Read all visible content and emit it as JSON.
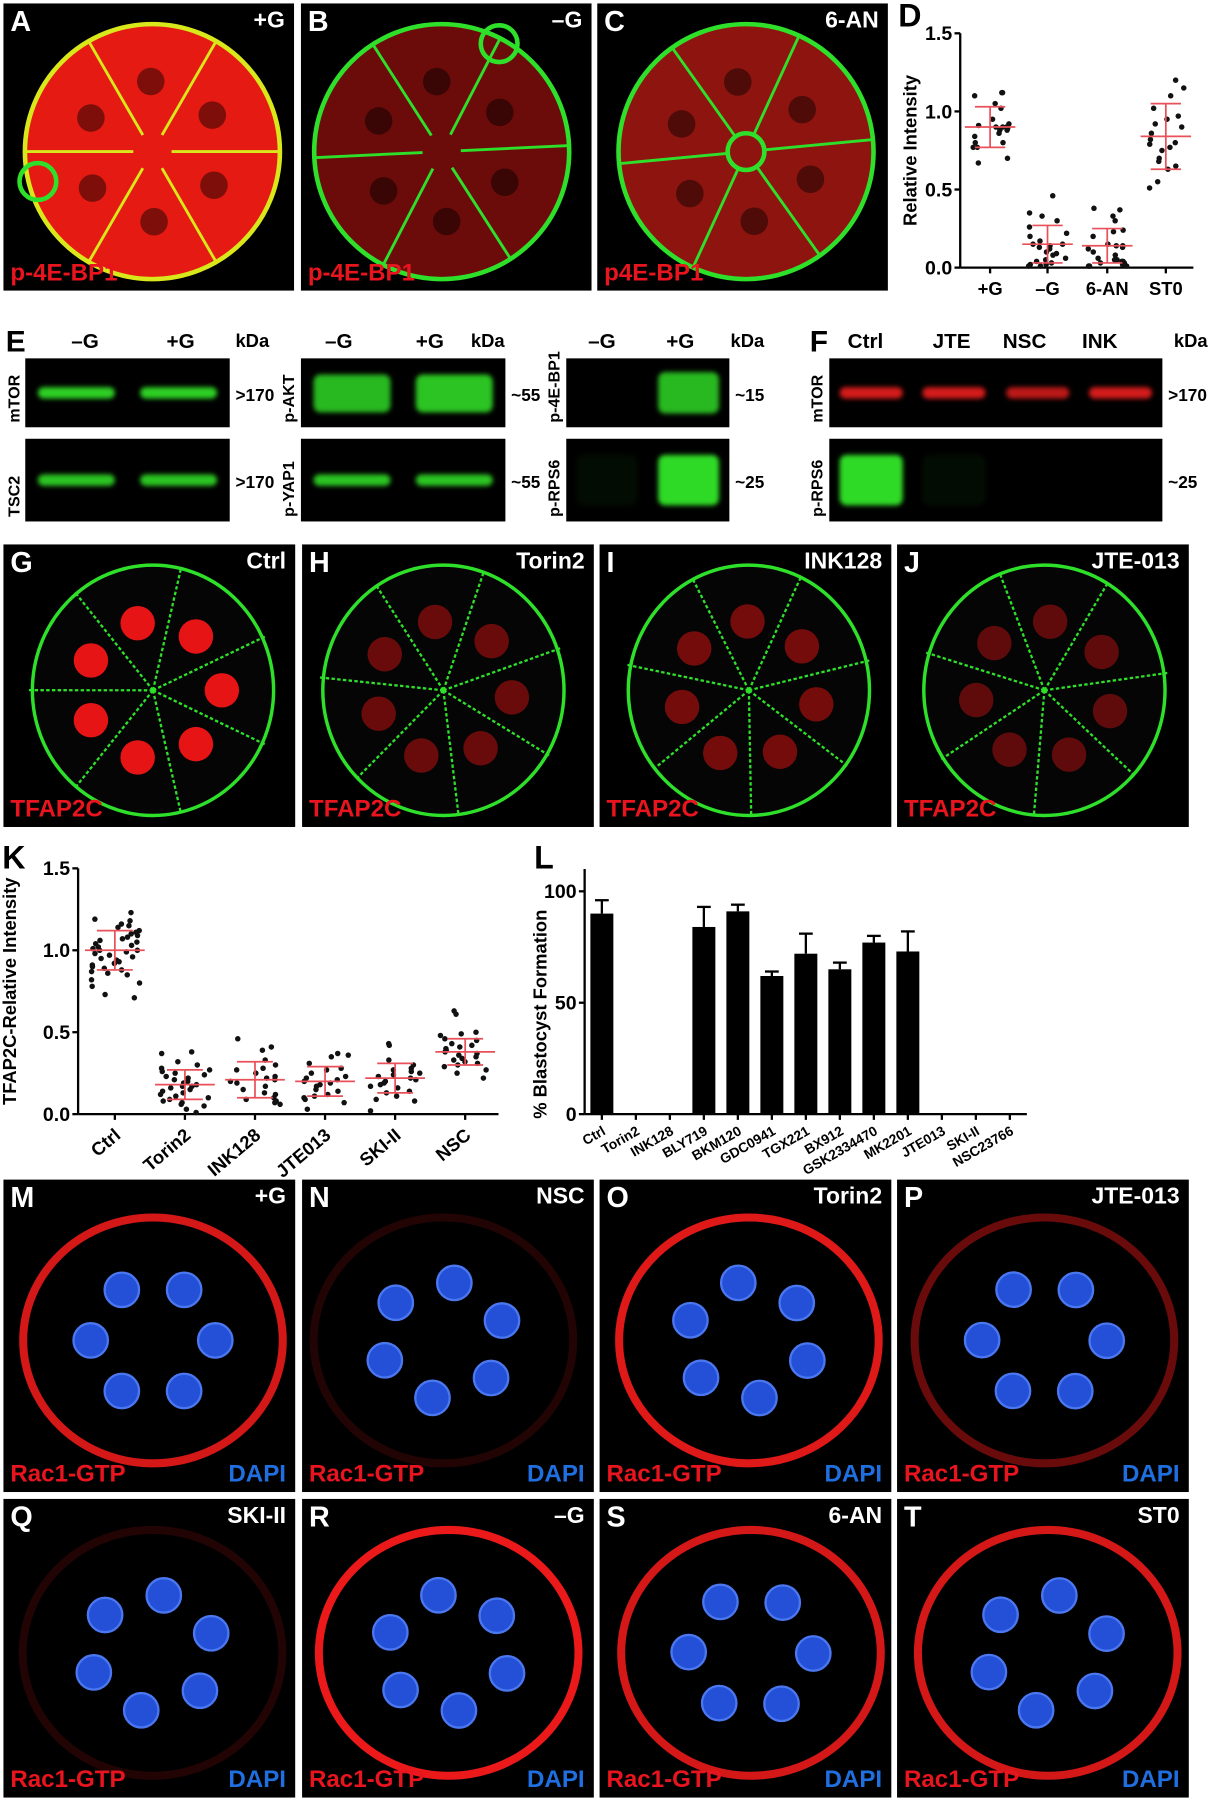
{
  "colors": {
    "red": "#e8141e",
    "green": "#2ee02a",
    "blue": "#1f6fe0",
    "yellow": "#d8e81a",
    "black": "#000000",
    "error_red": "#e8505a"
  },
  "row1": [
    {
      "letter": "A",
      "condition": "+G",
      "stain": "p-4E-BP1"
    },
    {
      "letter": "B",
      "condition": "–G",
      "stain": "p-4E-BP1"
    },
    {
      "letter": "C",
      "condition": "6-AN",
      "stain": "p4E-BP1"
    }
  ],
  "row3": [
    {
      "letter": "G",
      "condition": "Ctrl",
      "stain": "TFAP2C"
    },
    {
      "letter": "H",
      "condition": "Torin2",
      "stain": "TFAP2C"
    },
    {
      "letter": "I",
      "condition": "INK128",
      "stain": "TFAP2C"
    },
    {
      "letter": "J",
      "condition": "JTE-013",
      "stain": "TFAP2C"
    }
  ],
  "row5": [
    {
      "letter": "M",
      "condition": "+G",
      "stain": "Rac1-GTP",
      "stain2": "DAPI",
      "ring": 0.9
    },
    {
      "letter": "N",
      "condition": "NSC",
      "stain": "Rac1-GTP",
      "stain2": "DAPI",
      "ring": 0.15
    },
    {
      "letter": "O",
      "condition": "Torin2",
      "stain": "Rac1-GTP",
      "stain2": "DAPI",
      "ring": 0.95
    },
    {
      "letter": "P",
      "condition": "JTE-013",
      "stain": "Rac1-GTP",
      "stain2": "DAPI",
      "ring": 0.45
    }
  ],
  "row6": [
    {
      "letter": "Q",
      "condition": "SKI-II",
      "stain": "Rac1-GTP",
      "stain2": "DAPI",
      "ring": 0.15
    },
    {
      "letter": "R",
      "condition": "–G",
      "stain": "Rac1-GTP",
      "stain2": "DAPI",
      "ring": 1.0
    },
    {
      "letter": "S",
      "condition": "6-AN",
      "stain": "Rac1-GTP",
      "stain2": "DAPI",
      "ring": 0.9
    },
    {
      "letter": "T",
      "condition": "ST0",
      "stain": "Rac1-GTP",
      "stain2": "DAPI",
      "ring": 0.9
    }
  ],
  "blots": {
    "E": {
      "letter": "E",
      "sets": [
        {
          "lanes": [
            "–G",
            "+G"
          ],
          "kda_label": "kDa",
          "rows": [
            {
              "label": "mTOR",
              "kda": ">170",
              "color": "green",
              "intensity": [
                0.9,
                0.9
              ]
            },
            {
              "label": "TSC2",
              "kda": ">170",
              "color": "green",
              "intensity": [
                0.85,
                0.85
              ]
            }
          ]
        },
        {
          "lanes": [
            "–G",
            "+G"
          ],
          "kda_label": "kDa",
          "rows": [
            {
              "label": "p-AKT",
              "kda": "~55",
              "color": "green",
              "intensity": [
                0.8,
                0.85
              ]
            },
            {
              "label": "p-YAP1",
              "kda": "~55",
              "color": "green",
              "intensity": [
                0.85,
                0.85
              ]
            }
          ]
        },
        {
          "lanes": [
            "–G",
            "+G"
          ],
          "kda_label": "kDa",
          "rows": [
            {
              "label": "p-4E-BP1",
              "kda": "~15",
              "color": "green",
              "intensity": [
                0.0,
                0.8
              ]
            },
            {
              "label": "p-RPS6",
              "kda": "~25",
              "color": "green",
              "intensity": [
                0.05,
                0.95
              ]
            }
          ]
        }
      ]
    },
    "F": {
      "letter": "F",
      "lanes": [
        "Ctrl",
        "JTE",
        "NSC",
        "INK"
      ],
      "kda_label": "kDa",
      "rows": [
        {
          "label": "mTOR",
          "kda": ">170",
          "color": "red",
          "intensity": [
            0.9,
            0.9,
            0.8,
            0.9
          ]
        },
        {
          "label": "p-RPS6",
          "kda": "~25",
          "color": "green",
          "intensity": [
            0.95,
            0.05,
            0.0,
            0.0
          ]
        }
      ]
    }
  },
  "chart_data": [
    {
      "panel": "D",
      "type": "scatter",
      "ylabel": "Relative Intensity",
      "xlabel": "",
      "ylim": [
        0,
        1.5
      ],
      "yticks": [
        "0.0",
        "0.5",
        "1.0",
        "1.5"
      ],
      "categories": [
        "+G",
        "–G",
        "6-AN",
        "ST0"
      ],
      "series": [
        {
          "mean": 0.9,
          "sd": 0.13,
          "values": [
            1.12,
            1.1,
            1.12,
            1.05,
            1.02,
            0.95,
            0.92,
            0.9,
            0.9,
            0.89,
            0.88,
            0.9,
            0.91,
            0.88,
            0.8,
            0.8,
            0.77,
            0.77,
            0.7,
            0.67,
            0.86,
            0.84
          ]
        },
        {
          "mean": 0.15,
          "sd": 0.12,
          "values": [
            0.46,
            0.35,
            0.33,
            0.3,
            0.26,
            0.22,
            0.2,
            0.17,
            0.15,
            0.15,
            0.14,
            0.13,
            0.12,
            0.1,
            0.09,
            0.08,
            0.05,
            0.04,
            0.03,
            0.02,
            0.02,
            0.01,
            0.01,
            0.06
          ]
        },
        {
          "mean": 0.14,
          "sd": 0.11,
          "values": [
            0.38,
            0.37,
            0.33,
            0.3,
            0.24,
            0.23,
            0.2,
            0.15,
            0.14,
            0.14,
            0.13,
            0.12,
            0.1,
            0.08,
            0.06,
            0.05,
            0.04,
            0.04,
            0.03,
            0.02,
            0.02,
            0.01,
            0.01,
            0.01,
            0.05,
            0.03
          ]
        },
        {
          "mean": 0.84,
          "sd": 0.21,
          "values": [
            1.2,
            1.15,
            1.1,
            1.02,
            0.97,
            0.95,
            0.92,
            0.9,
            0.86,
            0.8,
            0.79,
            0.77,
            0.75,
            0.7,
            0.68,
            0.65,
            0.63,
            0.55,
            0.51,
            0.82
          ]
        }
      ]
    },
    {
      "panel": "K",
      "type": "scatter",
      "ylabel": "TFAP2C-Relative Intensity",
      "xlabel": "",
      "ylim": [
        0,
        1.5
      ],
      "yticks": [
        "0.0",
        "0.5",
        "1.0",
        "1.5"
      ],
      "categories": [
        "Ctrl",
        "Torin2",
        "INK128",
        "JTE013",
        "SKI-II",
        "NSC"
      ],
      "series": [
        {
          "mean": 1.0,
          "sd": 0.12,
          "values": [
            1.23,
            1.19,
            1.18,
            1.16,
            1.15,
            1.14,
            1.12,
            1.11,
            1.1,
            1.09,
            1.08,
            1.07,
            1.06,
            1.05,
            1.04,
            1.03,
            1.02,
            1.01,
            1.0,
            1.0,
            0.99,
            0.98,
            0.97,
            0.96,
            0.95,
            0.94,
            0.93,
            0.92,
            0.91,
            0.9,
            0.89,
            0.88,
            0.87,
            0.86,
            0.85,
            0.82,
            0.8,
            0.78,
            0.73,
            0.71
          ]
        },
        {
          "mean": 0.18,
          "sd": 0.09,
          "values": [
            0.38,
            0.37,
            0.32,
            0.3,
            0.28,
            0.27,
            0.26,
            0.25,
            0.24,
            0.23,
            0.22,
            0.21,
            0.2,
            0.19,
            0.18,
            0.17,
            0.17,
            0.16,
            0.15,
            0.14,
            0.13,
            0.12,
            0.11,
            0.1,
            0.09,
            0.08,
            0.07,
            0.06,
            0.05,
            0.03,
            0.01
          ]
        },
        {
          "mean": 0.21,
          "sd": 0.11,
          "values": [
            0.46,
            0.41,
            0.39,
            0.33,
            0.3,
            0.28,
            0.27,
            0.25,
            0.23,
            0.22,
            0.21,
            0.2,
            0.19,
            0.17,
            0.15,
            0.13,
            0.12,
            0.1,
            0.09,
            0.08,
            0.07,
            0.06
          ]
        },
        {
          "mean": 0.2,
          "sd": 0.09,
          "values": [
            0.37,
            0.36,
            0.35,
            0.31,
            0.28,
            0.27,
            0.25,
            0.23,
            0.22,
            0.21,
            0.2,
            0.19,
            0.18,
            0.17,
            0.15,
            0.14,
            0.12,
            0.11,
            0.1,
            0.09,
            0.07,
            0.03
          ]
        },
        {
          "mean": 0.22,
          "sd": 0.09,
          "values": [
            0.43,
            0.42,
            0.33,
            0.3,
            0.28,
            0.27,
            0.26,
            0.25,
            0.24,
            0.23,
            0.22,
            0.21,
            0.2,
            0.19,
            0.18,
            0.17,
            0.16,
            0.14,
            0.13,
            0.11,
            0.09,
            0.08,
            0.02
          ]
        },
        {
          "mean": 0.38,
          "sd": 0.08,
          "values": [
            0.63,
            0.61,
            0.5,
            0.49,
            0.48,
            0.46,
            0.45,
            0.43,
            0.42,
            0.41,
            0.4,
            0.39,
            0.38,
            0.37,
            0.36,
            0.35,
            0.34,
            0.33,
            0.32,
            0.31,
            0.3,
            0.29,
            0.27,
            0.25,
            0.22
          ]
        }
      ]
    },
    {
      "panel": "L",
      "type": "bar",
      "ylabel": "% Blastocyst Formation",
      "xlabel": "",
      "ylim": [
        0,
        110
      ],
      "yticks": [
        "0",
        "50",
        "100"
      ],
      "categories": [
        "Ctrl",
        "Torin2",
        "INK128",
        "BLY719",
        "BKM120",
        "GDC0941",
        "TGX221",
        "BX912",
        "GSK2334470",
        "MK2201",
        "JTE013",
        "SKI-II",
        "NSC23766"
      ],
      "values": [
        90,
        0,
        0,
        84,
        91,
        62,
        72,
        65,
        77,
        73,
        0,
        0,
        0
      ],
      "errors": [
        6,
        0,
        0,
        9,
        3,
        2,
        9,
        3,
        3,
        9,
        0,
        0,
        0
      ]
    }
  ]
}
